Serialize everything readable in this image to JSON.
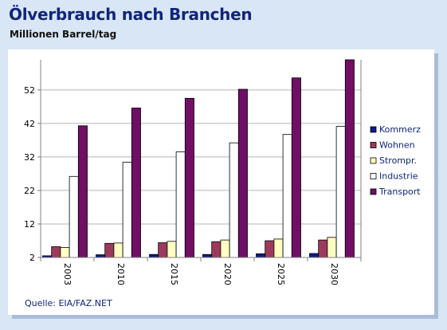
{
  "header": {
    "title": "Ölverbrauch nach Branchen",
    "subtitle": "Millionen Barrel/tag"
  },
  "source": "Quelle: EIA/FAZ.NET",
  "chart_data": {
    "type": "bar",
    "categories": [
      "2003",
      "2010",
      "2015",
      "2020",
      "2025",
      "2030"
    ],
    "series": [
      {
        "name": "Kommerz",
        "color": "#0a1a8c",
        "values": [
          2.5,
          2.8,
          2.9,
          2.9,
          3.1,
          3.2
        ]
      },
      {
        "name": "Wohnen",
        "color": "#9c3a5e",
        "values": [
          5.2,
          6.2,
          6.4,
          6.7,
          7.0,
          7.2
        ]
      },
      {
        "name": "Strompr.",
        "color": "#ffffc2",
        "values": [
          5.0,
          6.3,
          6.8,
          7.2,
          7.5,
          8.0
        ]
      },
      {
        "name": "Industrie",
        "color": "#ffffff",
        "values": [
          26.2,
          30.4,
          33.5,
          36.2,
          38.7,
          41.1
        ]
      },
      {
        "name": "Transport",
        "color": "#700f66",
        "values": [
          41.3,
          46.6,
          49.5,
          52.2,
          55.6,
          61.0
        ]
      }
    ],
    "yticks": [
      2,
      12,
      22,
      32,
      42,
      52
    ],
    "ylim": [
      2,
      61
    ],
    "grid": true,
    "legend": "right",
    "xlabel": "",
    "ylabel": ""
  }
}
